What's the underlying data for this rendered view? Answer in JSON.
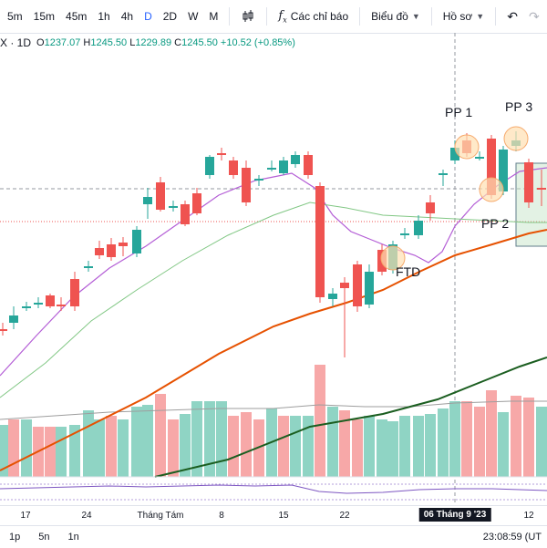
{
  "toolbar": {
    "timeframes": [
      "5m",
      "15m",
      "45m",
      "1h",
      "4h",
      "D",
      "2D",
      "W",
      "M"
    ],
    "active_timeframe": "D",
    "indicators_label": "Các chỉ báo",
    "chart_label": "Biểu đồ",
    "profile_label": "Hồ sơ",
    "icons": [
      "candlestick-icon",
      "fx-icon",
      "chevron-down-icon",
      "undo-icon",
      "redo-icon"
    ]
  },
  "legend": {
    "symbol": "X · 1D",
    "o_label": "O",
    "o_value": "1237.07",
    "h_label": "H",
    "h_value": "1245.50",
    "l_label": "L",
    "l_value": "1229.89",
    "c_label": "C",
    "c_value": "1245.50",
    "change": "+10.52 (+0.85%)"
  },
  "annotations": {
    "pp1": "PP  1",
    "pp2": "PP  2",
    "pp3": "PP  3",
    "ftd": "FTD"
  },
  "time_axis": {
    "labels": [
      "17",
      "24",
      "Tháng Tám",
      "8",
      "15",
      "22",
      "12"
    ],
    "cursor_label": "06 Tháng 9 '23"
  },
  "bottom_bar": {
    "ranges": [
      "1p",
      "5n",
      "1n"
    ],
    "clock": "23:08:59 (UT"
  },
  "colors": {
    "up": "#26a69a",
    "down": "#ef5350",
    "ma_short": "#b45ed6",
    "ma_mid": "#81c784",
    "ma_long": "#e65100",
    "ma_vlong": "#1b5e20",
    "accent": "#2962ff"
  }
}
